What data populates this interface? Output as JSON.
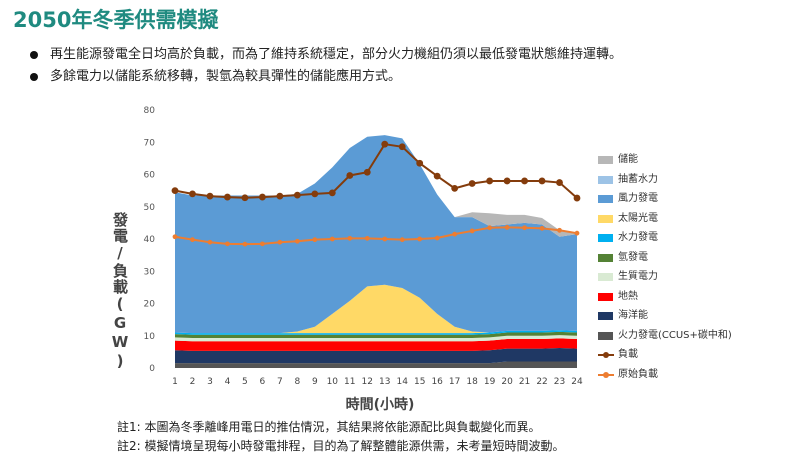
{
  "title": "2050年冬季供需模擬",
  "bullets": [
    "再生能源發電全日均高於負載，而為了維持系統穩定，部分火力機組仍須以最低發電狀態維持運轉。",
    "多餘電力以儲能系統移轉，製氫為較具彈性的儲能應用方式。"
  ],
  "notes": [
    "註1: 本圖為冬季離峰用電日的推估情況，其結果將依能源配比與負載變化而異。",
    "註2: 模擬情境呈現每小時發電排程，目的為了解整體能源供需，未考量短時間波動。"
  ],
  "chart_data": {
    "type": "area",
    "xlabel": "時間(小時)",
    "ylabel": "發電/負載(GW)",
    "x": [
      1,
      2,
      3,
      4,
      5,
      6,
      7,
      8,
      9,
      10,
      11,
      12,
      13,
      14,
      15,
      16,
      17,
      18,
      19,
      20,
      21,
      22,
      23,
      24
    ],
    "ylim": [
      0,
      80
    ],
    "yticks": [
      0,
      10,
      20,
      30,
      40,
      50,
      60,
      70,
      80
    ],
    "grid": false,
    "legend_position": "right",
    "stacked_series": [
      {
        "name": "火力發電(CCUS+碳中和)",
        "color": "#555555",
        "values": [
          1.5,
          1.5,
          1.5,
          1.5,
          1.5,
          1.5,
          1.5,
          1.5,
          1.5,
          1.5,
          1.5,
          1.5,
          1.5,
          1.5,
          1.5,
          1.5,
          1.5,
          1.5,
          1.5,
          2,
          2,
          2,
          2,
          2
        ]
      },
      {
        "name": "海洋能",
        "color": "#1f3864",
        "values": [
          4,
          3.8,
          3.8,
          3.8,
          3.8,
          3.8,
          3.8,
          3.8,
          3.8,
          3.8,
          3.8,
          3.8,
          3.8,
          3.8,
          3.8,
          3.8,
          3.8,
          3.8,
          4,
          4,
          4,
          4,
          4.2,
          4
        ]
      },
      {
        "name": "地熱",
        "color": "#ff0000",
        "values": [
          3,
          3,
          3,
          3,
          3,
          3,
          3,
          3,
          3,
          3,
          3,
          3,
          3,
          3,
          3,
          3,
          3,
          3,
          3,
          3,
          3,
          3,
          3,
          3
        ]
      },
      {
        "name": "生質電力",
        "color": "#d9ead3",
        "values": [
          1,
          1,
          1,
          1,
          1,
          1,
          1,
          1,
          1,
          1,
          1,
          1,
          1,
          1,
          1,
          1,
          1,
          1,
          1,
          1,
          1,
          1,
          1,
          1
        ]
      },
      {
        "name": "氫發電",
        "color": "#548235",
        "values": [
          1,
          1,
          1,
          1,
          1,
          1,
          1,
          1,
          1,
          1,
          1,
          1,
          1,
          1,
          1,
          1,
          1,
          1,
          1,
          1,
          1,
          1,
          1,
          1
        ]
      },
      {
        "name": "水力發電",
        "color": "#00b0f0",
        "values": [
          0.5,
          0.5,
          0.5,
          0.5,
          0.5,
          0.5,
          0.5,
          0.5,
          0.5,
          0.5,
          0.5,
          0.5,
          0.5,
          0.5,
          0.5,
          0.5,
          0.5,
          0.5,
          0.5,
          0.5,
          0.5,
          0.5,
          0.5,
          0.5
        ]
      },
      {
        "name": "太陽光電",
        "color": "#ffd966",
        "values": [
          0,
          0,
          0,
          0,
          0,
          0,
          0,
          0.5,
          2,
          6,
          10,
          14.5,
          15,
          14,
          11,
          6,
          2,
          0.5,
          0,
          0,
          0,
          0,
          0,
          0
        ]
      },
      {
        "name": "風力發電",
        "color": "#5b9bd5",
        "values": [
          43.5,
          42.7,
          42.7,
          42.7,
          42.7,
          42.7,
          42.7,
          42.7,
          44.4,
          45.4,
          47.4,
          46.4,
          46.4,
          46.4,
          41.4,
          37,
          34,
          35.5,
          33,
          33,
          33.5,
          33,
          29,
          30
        ]
      },
      {
        "name": "抽蓄水力",
        "color": "#9dc3e6",
        "values": [
          0,
          0,
          0,
          0,
          0,
          0,
          0,
          0,
          0,
          0,
          0,
          0,
          0,
          0,
          0,
          0,
          0,
          0,
          0,
          0,
          0,
          0,
          0,
          0
        ]
      },
      {
        "name": "儲能",
        "color": "#b7b7b7",
        "values": [
          0,
          0,
          0,
          0,
          0,
          0,
          0,
          0,
          0,
          0,
          0,
          0,
          0,
          0,
          0,
          0,
          0,
          1.5,
          4,
          3,
          2.5,
          2,
          2,
          0
        ]
      }
    ],
    "line_series": [
      {
        "name": "負載",
        "color": "#843c0c",
        "values": [
          55,
          54,
          53.3,
          53,
          52.8,
          53,
          53.3,
          53.6,
          54,
          54.3,
          59.7,
          60.7,
          69.4,
          68.6,
          63.5,
          59.5,
          55.7,
          57.2,
          58,
          58,
          58,
          58,
          57.5,
          52.7
        ]
      },
      {
        "name": "原始負載",
        "color": "#ed7d31",
        "values": [
          40.7,
          39.8,
          39,
          38.5,
          38.4,
          38.5,
          39,
          39.3,
          39.8,
          40,
          40.2,
          40.2,
          40,
          39.8,
          40,
          40.3,
          41.5,
          42.5,
          43.5,
          43.6,
          43.5,
          43.3,
          42.7,
          41.8
        ]
      }
    ],
    "legend_order": [
      "儲能",
      "抽蓄水力",
      "風力發電",
      "太陽光電",
      "水力發電",
      "氫發電",
      "生質電力",
      "地熱",
      "海洋能",
      "火力發電(CCUS+碳中和)",
      "負載",
      "原始負載"
    ]
  }
}
